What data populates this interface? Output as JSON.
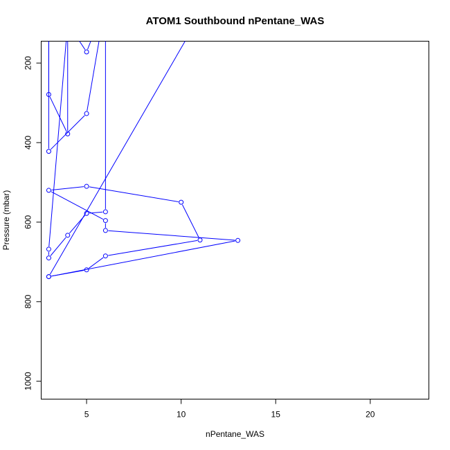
{
  "chart_data": {
    "type": "line",
    "title": "ATOM1 Southbound nPentane_WAS",
    "xlabel": "nPentane_WAS",
    "ylabel": "Pressure (mbar)",
    "xlim": [
      2.6,
      23.1
    ],
    "ylim": [
      1045,
      145
    ],
    "y_reversed": true,
    "x_ticks": [
      5,
      10,
      15,
      20
    ],
    "y_ticks": [
      200,
      400,
      600,
      800,
      1000
    ],
    "grid": false,
    "series": [
      {
        "color": "#0000ff",
        "marker": "open-circle",
        "points": [
          {
            "x": 3,
            "y": 737
          },
          {
            "x": 5,
            "y": 720
          },
          {
            "x": 6,
            "y": 685
          },
          {
            "x": 11,
            "y": 645
          },
          {
            "x": 10,
            "y": 550
          },
          {
            "x": 5,
            "y": 510
          },
          {
            "x": 3,
            "y": 520
          },
          {
            "x": 6,
            "y": 596
          },
          {
            "x": 6,
            "y": 621
          },
          {
            "x": 13,
            "y": 646
          },
          {
            "x": 3,
            "y": 737
          },
          {
            "x": 11,
            "y": 80
          },
          {
            "x": 6,
            "y": 100
          },
          {
            "x": 6,
            "y": 574
          },
          {
            "x": 5,
            "y": 578
          },
          {
            "x": 4,
            "y": 633
          },
          {
            "x": 3,
            "y": 690
          },
          {
            "x": 3,
            "y": 668
          },
          {
            "x": 4,
            "y": 100
          },
          {
            "x": 4,
            "y": 378
          },
          {
            "x": 3,
            "y": 279
          },
          {
            "x": 3,
            "y": 100
          },
          {
            "x": 3,
            "y": 422
          },
          {
            "x": 5,
            "y": 327
          },
          {
            "x": 6,
            "y": 50
          },
          {
            "x": 5,
            "y": 172
          },
          {
            "x": 4,
            "y": 100
          }
        ]
      }
    ]
  }
}
